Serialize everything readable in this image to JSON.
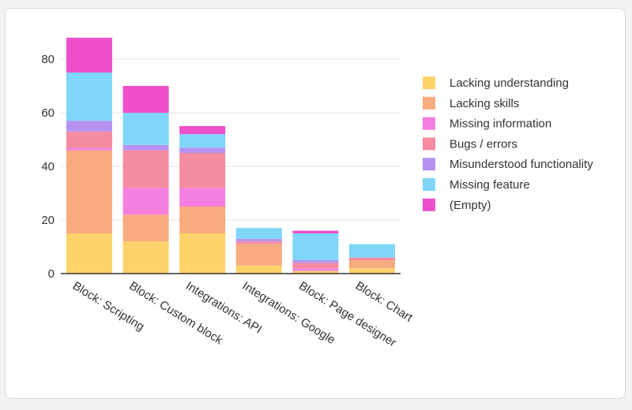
{
  "chart_data": {
    "type": "bar",
    "stacked": true,
    "title": "",
    "xlabel": "",
    "ylabel": "",
    "ylim": [
      0,
      90
    ],
    "yticks": [
      0,
      20,
      40,
      60,
      80
    ],
    "grid": true,
    "legend_position": "right",
    "categories": [
      "Block: Scripting",
      "Block: Custom block",
      "Integrations: API",
      "Integrations: Google",
      "Block: Page designer",
      "Block: Chart"
    ],
    "series": [
      {
        "name": "Lacking understanding",
        "color": "#ffd36b",
        "values": [
          15,
          12,
          15,
          3,
          1,
          2
        ]
      },
      {
        "name": "Lacking skills",
        "color": "#f8ab7f",
        "values": [
          31,
          10,
          10,
          8,
          0,
          3
        ]
      },
      {
        "name": "Missing information",
        "color": "#f47fe0",
        "values": [
          1,
          10,
          7,
          0,
          1,
          0
        ]
      },
      {
        "name": "Bugs / errors",
        "color": "#f58ca0",
        "values": [
          6,
          14,
          13,
          1,
          2,
          1
        ]
      },
      {
        "name": "Misunderstood functionality",
        "color": "#b592f2",
        "values": [
          4,
          2,
          2,
          1,
          1,
          0
        ]
      },
      {
        "name": "Missing feature",
        "color": "#7fd6f8",
        "values": [
          18,
          12,
          5,
          4,
          10,
          5
        ]
      },
      {
        "name": "(Empty)",
        "color": "#ee4fcb",
        "values": [
          13,
          10,
          3,
          0,
          1,
          0
        ]
      }
    ]
  }
}
